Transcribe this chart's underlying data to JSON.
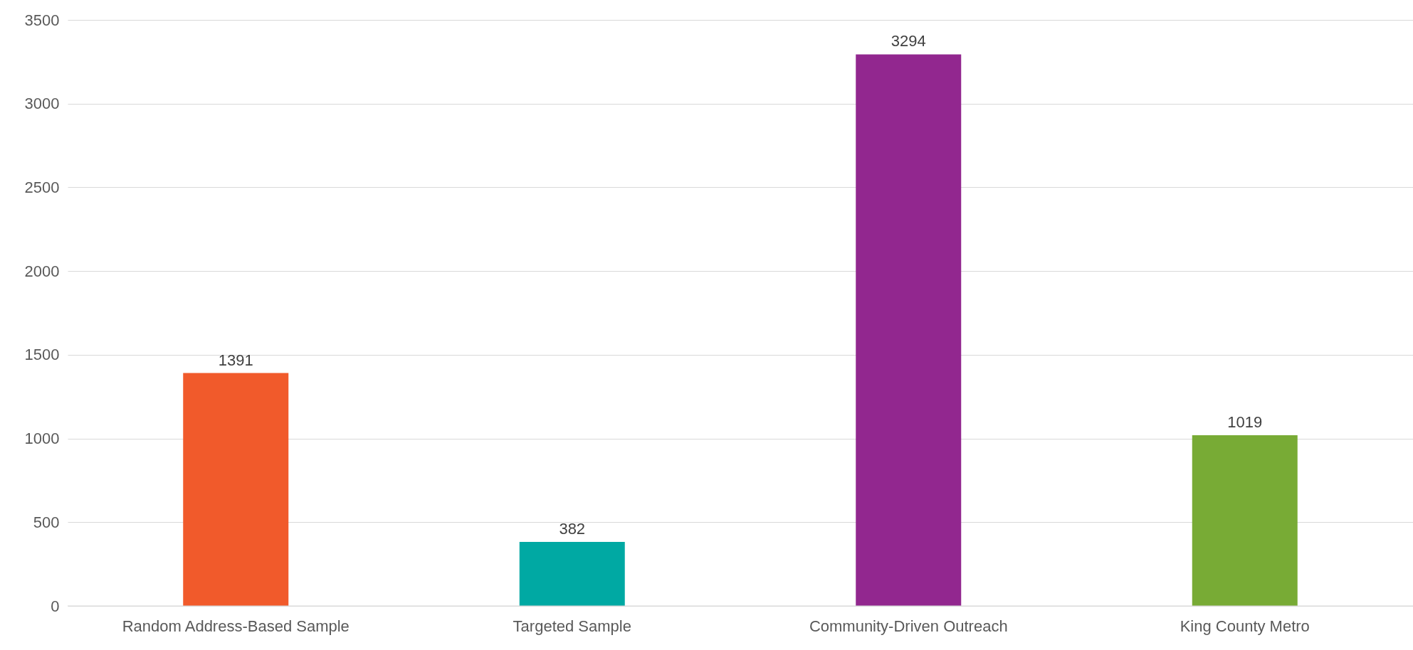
{
  "chart_data": {
    "type": "bar",
    "categories": [
      "Random Address-Based Sample",
      "Targeted Sample",
      "Community-Driven Outreach",
      "King County Metro"
    ],
    "values": [
      1391,
      382,
      3294,
      1019
    ],
    "colors": [
      "#f15a2b",
      "#00a9a3",
      "#92278f",
      "#78ab35"
    ],
    "ylim": [
      0,
      3500
    ],
    "yticks": [
      0,
      500,
      1000,
      1500,
      2000,
      2500,
      3000,
      3500
    ],
    "grid": "y",
    "data_labels": true
  }
}
